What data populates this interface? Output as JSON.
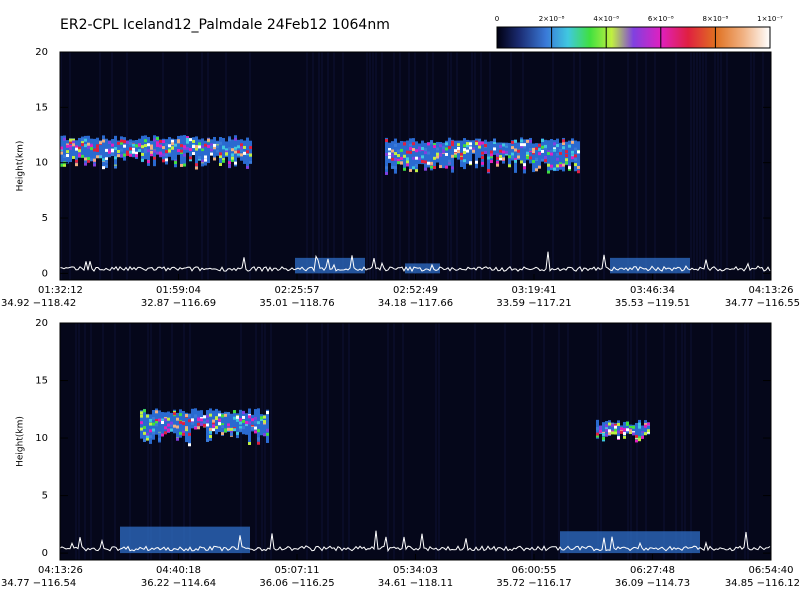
{
  "chart_data": [
    {
      "type": "colorbar",
      "title": "ER2-CPL Iceland12_Palmdale 24Feb12 1064nm",
      "clim": [
        0,
        1e-07
      ],
      "cticks": [
        0,
        {
          "value": 2e-08,
          "label": "2×10⁻⁸"
        },
        {
          "value": 4e-08,
          "label": "4×10⁻⁸"
        },
        {
          "value": 6e-08,
          "label": "6×10⁻⁸"
        },
        {
          "value": 8e-08,
          "label": "8×10⁻⁸"
        },
        {
          "value": 1e-07,
          "label": "1×10⁻⁷"
        }
      ]
    },
    {
      "type": "curtain",
      "ylabel": "Height(km)",
      "ylim": [
        -0.6,
        20
      ],
      "yticks": [
        0,
        5,
        10,
        15,
        20
      ],
      "xticks": [
        {
          "time": "01:32:12",
          "position": "34.92 −118.42"
        },
        {
          "time": "01:59:04",
          "position": "32.87 −116.69"
        },
        {
          "time": "02:25:57",
          "position": "35.01 −118.76"
        },
        {
          "time": "02:52:49",
          "position": "34.18 −117.66"
        },
        {
          "time": "03:19:41",
          "position": "33.59 −117.21"
        },
        {
          "time": "03:46:34",
          "position": "35.53 −119.51"
        },
        {
          "time": "04:13:26",
          "position": "34.77 −116.55"
        }
      ]
    },
    {
      "type": "curtain",
      "ylabel": "Height(km)",
      "ylim": [
        -0.6,
        20
      ],
      "yticks": [
        0,
        5,
        10,
        15,
        20
      ],
      "xticks": [
        {
          "time": "04:13:26",
          "position": "34.77 −116.54"
        },
        {
          "time": "04:40:18",
          "position": "36.22 −114.64"
        },
        {
          "time": "05:07:11",
          "position": "36.06 −116.25"
        },
        {
          "time": "05:34:03",
          "position": "34.61 −118.11"
        },
        {
          "time": "06:00:55",
          "position": "35.72 −116.17"
        },
        {
          "time": "06:27:48",
          "position": "36.09 −114.73"
        },
        {
          "time": "06:54:40",
          "position": "34.85 −116.12"
        }
      ]
    }
  ]
}
